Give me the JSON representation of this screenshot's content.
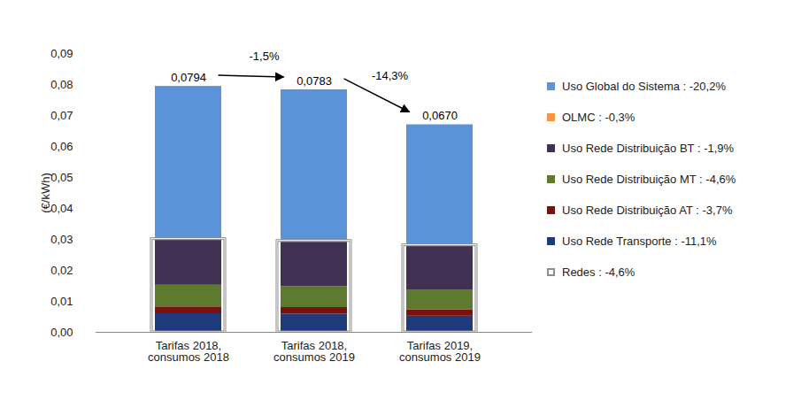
{
  "chart_data": {
    "type": "bar",
    "stacked": true,
    "y_label": "(€/kWh)",
    "categories": [
      "Tarifas 2018, consumos 2018",
      "Tarifas 2018, consumos 2019",
      "Tarifas 2019, consumos 2019"
    ],
    "series": [
      {
        "name": "Uso Rede Transporte  : -11,1%",
        "color": "#1f3a7a",
        "values": [
          0.006,
          0.0059,
          0.0052
        ]
      },
      {
        "name": "Uso Rede Distribuição AT  : -3,7%",
        "color": "#7b1010",
        "values": [
          0.0022,
          0.0021,
          0.002
        ]
      },
      {
        "name": "Uso Rede Distribuição MT  : -4,6%",
        "color": "#5e7a2e",
        "values": [
          0.007,
          0.0068,
          0.0065
        ]
      },
      {
        "name": "Uso Rede Distribuição BT  : -1,9%",
        "color": "#403152",
        "values": [
          0.0145,
          0.0143,
          0.014
        ]
      },
      {
        "name": "OLMC  : -0,3%",
        "color": "#f79646",
        "values": [
          0.0004,
          0.0004,
          0.0004
        ]
      },
      {
        "name": "Uso Global do Sistema  : -20,2%",
        "color": "#5b93d8",
        "values": [
          0.0493,
          0.0488,
          0.0389
        ]
      },
      {
        "name": "Redes  : -4,6%",
        "color": "#8c8c8c",
        "type": "outline",
        "values": [
          0.0301,
          0.0295,
          0.0281
        ]
      }
    ],
    "totals": {
      "values": [
        0.0794,
        0.0783,
        0.067
      ],
      "value_labels": [
        "0,0794",
        "0,0783",
        "0,0670"
      ]
    },
    "annotations": [
      {
        "from": "Tarifas 2018, consumos 2018",
        "to": "Tarifas 2018, consumos 2019",
        "text": "-1,5%"
      },
      {
        "from": "Tarifas 2018, consumos 2019",
        "to": "Tarifas 2019, consumos 2019",
        "text": "-14,3%"
      }
    ],
    "ylim": [
      0,
      0.09
    ],
    "yticks": [
      {
        "value": 0,
        "label": "0,00"
      },
      {
        "value": 0.01,
        "label": "0,01"
      },
      {
        "value": 0.02,
        "label": "0,02"
      },
      {
        "value": 0.03,
        "label": "0,03"
      },
      {
        "value": 0.04,
        "label": "0,04"
      },
      {
        "value": 0.05,
        "label": "0,05"
      },
      {
        "value": 0.06,
        "label": "0,06"
      },
      {
        "value": 0.07,
        "label": "0,07"
      },
      {
        "value": 0.08,
        "label": "0,08"
      },
      {
        "value": 0.09,
        "label": "0,09"
      }
    ],
    "grid": false,
    "legend": "right",
    "data_labels": false
  }
}
